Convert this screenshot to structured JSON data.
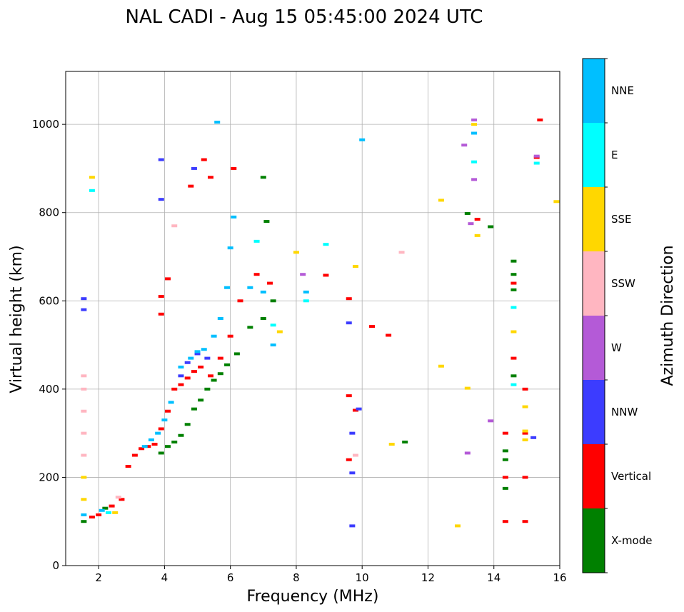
{
  "chart_data": {
    "type": "scatter",
    "title": "NAL CADI - Aug 15 05:45:00 2024 UTC",
    "xlabel": "Frequency (MHz)",
    "ylabel": "Virtual height (km)",
    "xlim": [
      1,
      16
    ],
    "ylim": [
      0,
      1120
    ],
    "x_ticks": [
      2,
      4,
      6,
      8,
      10,
      12,
      14,
      16
    ],
    "y_ticks": [
      0,
      200,
      400,
      600,
      800,
      1000
    ],
    "grid": true,
    "colorbar": {
      "label": "Azimuth Direction",
      "categories": [
        {
          "name": "X-mode",
          "color": "#008000"
        },
        {
          "name": "Vertical",
          "color": "#ff0000"
        },
        {
          "name": "NNW",
          "color": "#3c3cff"
        },
        {
          "name": "W",
          "color": "#b45ad7"
        },
        {
          "name": "SSW",
          "color": "#ffb6c1"
        },
        {
          "name": "SSE",
          "color": "#ffd700"
        },
        {
          "name": "E",
          "color": "#00ffff"
        },
        {
          "name": "NNE",
          "color": "#00bfff"
        }
      ]
    },
    "series": [
      {
        "name": "X-mode",
        "points": [
          [
            3.9,
            255
          ],
          [
            4.1,
            270
          ],
          [
            4.3,
            280
          ],
          [
            4.5,
            295
          ],
          [
            4.7,
            320
          ],
          [
            4.9,
            355
          ],
          [
            5.1,
            375
          ],
          [
            5.3,
            400
          ],
          [
            5.5,
            420
          ],
          [
            5.7,
            435
          ],
          [
            5.9,
            455
          ],
          [
            6.2,
            480
          ],
          [
            6.6,
            540
          ],
          [
            7.0,
            560
          ],
          [
            7.3,
            600
          ],
          [
            1.55,
            100
          ],
          [
            2.2,
            130
          ],
          [
            14.35,
            175
          ],
          [
            14.35,
            240
          ],
          [
            14.35,
            260
          ],
          [
            14.6,
            430
          ],
          [
            14.6,
            625
          ],
          [
            14.6,
            660
          ],
          [
            14.6,
            690
          ],
          [
            7.1,
            780
          ],
          [
            7.0,
            880
          ],
          [
            13.2,
            798
          ],
          [
            13.9,
            768
          ],
          [
            11.3,
            280
          ]
        ]
      },
      {
        "name": "Vertical",
        "points": [
          [
            1.8,
            110
          ],
          [
            2.0,
            115
          ],
          [
            2.4,
            135
          ],
          [
            2.7,
            150
          ],
          [
            2.9,
            225
          ],
          [
            3.1,
            250
          ],
          [
            3.3,
            265
          ],
          [
            3.5,
            270
          ],
          [
            3.7,
            275
          ],
          [
            3.9,
            310
          ],
          [
            4.1,
            350
          ],
          [
            4.3,
            400
          ],
          [
            4.5,
            410
          ],
          [
            4.7,
            425
          ],
          [
            4.9,
            440
          ],
          [
            5.1,
            450
          ],
          [
            5.4,
            430
          ],
          [
            5.7,
            470
          ],
          [
            6.0,
            520
          ],
          [
            6.3,
            600
          ],
          [
            6.8,
            660
          ],
          [
            7.2,
            640
          ],
          [
            3.9,
            610
          ],
          [
            4.1,
            650
          ],
          [
            3.9,
            570
          ],
          [
            4.8,
            860
          ],
          [
            5.4,
            880
          ],
          [
            6.1,
            900
          ],
          [
            5.2,
            920
          ],
          [
            9.6,
            385
          ],
          [
            9.8,
            352
          ],
          [
            9.6,
            240
          ],
          [
            10.3,
            542
          ],
          [
            10.8,
            522
          ],
          [
            8.9,
            658
          ],
          [
            9.6,
            605
          ],
          [
            13.5,
            785
          ],
          [
            15.4,
            1010
          ],
          [
            15.3,
            925
          ],
          [
            14.35,
            100
          ],
          [
            14.35,
            200
          ],
          [
            14.35,
            300
          ],
          [
            14.95,
            100
          ],
          [
            14.95,
            200
          ],
          [
            14.95,
            300
          ],
          [
            14.95,
            400
          ],
          [
            14.6,
            640
          ],
          [
            14.6,
            470
          ]
        ]
      },
      {
        "name": "NNW",
        "points": [
          [
            1.55,
            580
          ],
          [
            1.55,
            605
          ],
          [
            3.9,
            920
          ],
          [
            3.9,
            830
          ],
          [
            4.9,
            900
          ],
          [
            5.3,
            470
          ],
          [
            5.0,
            480
          ],
          [
            4.7,
            460
          ],
          [
            4.5,
            430
          ],
          [
            9.6,
            550
          ],
          [
            9.7,
            300
          ],
          [
            9.7,
            210
          ],
          [
            9.7,
            90
          ],
          [
            9.9,
            355
          ],
          [
            15.2,
            290
          ],
          [
            13.4,
            980
          ]
        ]
      },
      {
        "name": "W",
        "points": [
          [
            13.1,
            953
          ],
          [
            13.3,
            775
          ],
          [
            13.2,
            255
          ],
          [
            13.9,
            328
          ],
          [
            8.2,
            660
          ],
          [
            13.4,
            1010
          ],
          [
            13.4,
            875
          ],
          [
            15.3,
            928
          ]
        ]
      },
      {
        "name": "SSW",
        "points": [
          [
            1.55,
            250
          ],
          [
            1.55,
            300
          ],
          [
            1.55,
            350
          ],
          [
            1.55,
            400
          ],
          [
            1.55,
            430
          ],
          [
            2.6,
            155
          ],
          [
            4.3,
            770
          ],
          [
            9.8,
            250
          ],
          [
            11.2,
            710
          ]
        ]
      },
      {
        "name": "SSE",
        "points": [
          [
            1.55,
            150
          ],
          [
            1.55,
            200
          ],
          [
            1.8,
            880
          ],
          [
            2.5,
            120
          ],
          [
            7.5,
            530
          ],
          [
            8.0,
            710
          ],
          [
            9.8,
            678
          ],
          [
            10.9,
            275
          ],
          [
            12.4,
            452
          ],
          [
            12.4,
            828
          ],
          [
            13.2,
            402
          ],
          [
            12.9,
            90
          ],
          [
            13.5,
            748
          ],
          [
            15.9,
            825
          ],
          [
            14.6,
            530
          ],
          [
            14.95,
            360
          ],
          [
            14.95,
            305
          ],
          [
            14.95,
            285
          ],
          [
            13.4,
            1000
          ]
        ]
      },
      {
        "name": "E",
        "points": [
          [
            1.8,
            850
          ],
          [
            2.3,
            120
          ],
          [
            8.3,
            600
          ],
          [
            8.9,
            728
          ],
          [
            14.6,
            410
          ],
          [
            14.6,
            585
          ],
          [
            13.4,
            915
          ],
          [
            15.3,
            912
          ],
          [
            6.8,
            735
          ],
          [
            7.3,
            545
          ]
        ]
      },
      {
        "name": "NNE",
        "points": [
          [
            1.55,
            115
          ],
          [
            2.1,
            125
          ],
          [
            3.4,
            270
          ],
          [
            3.6,
            285
          ],
          [
            3.8,
            300
          ],
          [
            4.0,
            330
          ],
          [
            4.2,
            370
          ],
          [
            4.5,
            450
          ],
          [
            4.8,
            470
          ],
          [
            5.0,
            485
          ],
          [
            5.2,
            490
          ],
          [
            5.5,
            520
          ],
          [
            5.7,
            560
          ],
          [
            5.9,
            630
          ],
          [
            6.0,
            720
          ],
          [
            6.1,
            790
          ],
          [
            6.6,
            630
          ],
          [
            7.0,
            620
          ],
          [
            7.3,
            500
          ],
          [
            5.6,
            1005
          ],
          [
            8.3,
            620
          ],
          [
            13.4,
            980
          ],
          [
            10.0,
            965
          ]
        ]
      }
    ]
  }
}
